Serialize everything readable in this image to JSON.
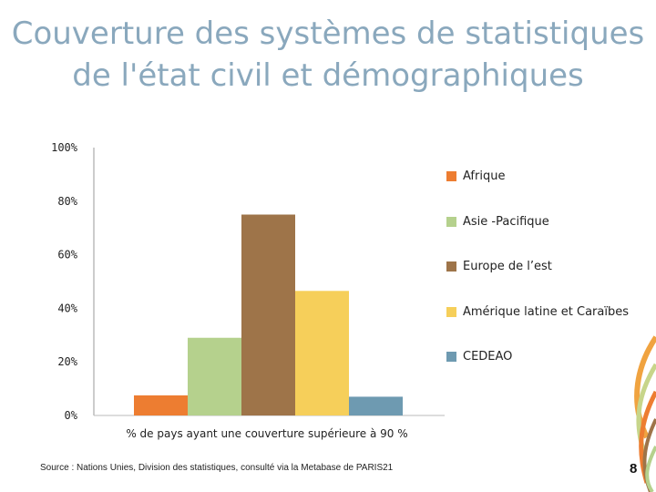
{
  "title_line1": "Couverture des systèmes de statistiques",
  "title_line2": "de l'état civil et démographiques",
  "chart_data": {
    "type": "bar",
    "categories": [
      "% de pays ayant une couverture supérieure à 90 %"
    ],
    "series": [
      {
        "name": "Afrique",
        "values": [
          7.5
        ],
        "color": "#ed7d31"
      },
      {
        "name": "Asie -Pacifique",
        "values": [
          29
        ],
        "color": "#b5d18d"
      },
      {
        "name": "Europe de l’est",
        "values": [
          75
        ],
        "color": "#9e7449"
      },
      {
        "name": "Amérique latine et Caraïbes",
        "values": [
          46.5
        ],
        "color": "#f6cf5a"
      },
      {
        "name": "CEDEAO",
        "values": [
          7
        ],
        "color": "#6e9ab1"
      }
    ],
    "yticks": [
      "0%",
      "20%",
      "40%",
      "60%",
      "80%",
      "100%"
    ],
    "ylim": [
      0,
      100
    ],
    "grid": false,
    "legend_position": "right"
  },
  "source": "Source : Nations Unies, Division des statistiques, consulté via la Metabase de PARIS21",
  "page_number": "8"
}
